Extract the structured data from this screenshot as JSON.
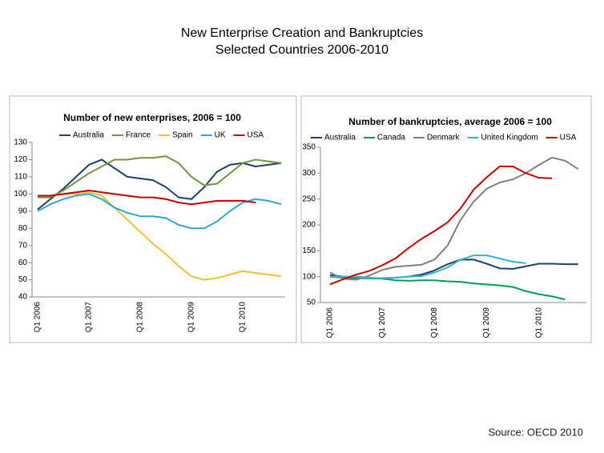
{
  "title": [
    "New Enterprise Creation and Bankruptcies",
    "Selected Countries 2006-2010"
  ],
  "source": "Source: OECD 2010",
  "chart_data": [
    {
      "type": "line",
      "title": "Number of new enterprises, 2006 = 100",
      "categories": [
        "Q1 2006",
        null,
        null,
        null,
        "Q1 2007",
        null,
        null,
        null,
        "Q1 2008",
        null,
        null,
        null,
        "Q1 2009",
        null,
        null,
        null,
        "Q1 2010",
        null,
        null,
        null
      ],
      "ylim": [
        40,
        130
      ],
      "yticks": [
        40,
        50,
        60,
        70,
        80,
        90,
        100,
        110,
        120,
        130
      ],
      "grid": false,
      "series": [
        {
          "name": "Australia",
          "color": "#1f3f6e",
          "values": [
            91,
            97,
            103,
            110,
            117,
            120,
            115,
            110,
            109,
            108,
            104,
            98,
            97,
            104,
            113,
            117,
            118,
            116,
            117,
            118
          ]
        },
        {
          "name": "France",
          "color": "#77933c",
          "values": [
            98,
            98,
            102,
            107,
            112,
            116,
            120,
            120,
            121,
            121,
            122,
            118,
            110,
            105,
            106,
            112,
            118,
            120,
            119,
            118
          ]
        },
        {
          "name": "Spain",
          "color": "#f2c12e",
          "values": [
            99,
            99,
            100,
            100,
            101,
            99,
            92,
            85,
            78,
            71,
            65,
            58,
            52,
            50,
            51,
            53,
            55,
            54,
            53,
            52
          ]
        },
        {
          "name": "UK",
          "color": "#31a6d6",
          "values": [
            90,
            94,
            97,
            99,
            100,
            97,
            92,
            89,
            87,
            87,
            86,
            82,
            80,
            80,
            84,
            90,
            95,
            97,
            96,
            94
          ]
        },
        {
          "name": "USA",
          "color": "#c00000",
          "values": [
            99,
            99,
            100,
            101,
            102,
            101,
            100,
            99,
            98,
            98,
            97,
            95,
            94,
            95,
            96,
            96,
            96,
            95,
            null,
            null
          ]
        }
      ]
    },
    {
      "type": "line",
      "title": "Number of bankruptcies, average 2006 = 100",
      "categories": [
        "Q1 2006",
        null,
        null,
        null,
        "Q1 2007",
        null,
        null,
        null,
        "Q1 2008",
        null,
        null,
        null,
        "Q1 2009",
        null,
        null,
        null,
        "Q1 2010",
        null,
        null,
        null
      ],
      "ylim": [
        50,
        350
      ],
      "yticks": [
        50,
        100,
        150,
        200,
        250,
        300,
        350
      ],
      "grid": false,
      "series": [
        {
          "name": "Australia",
          "color": "#1f3f6e",
          "values": [
            103,
            100,
            97,
            97,
            97,
            98,
            100,
            104,
            112,
            124,
            133,
            133,
            125,
            116,
            115,
            120,
            125,
            125,
            124,
            124
          ]
        },
        {
          "name": "Canada",
          "color": "#00a050",
          "values": [
            100,
            98,
            97,
            97,
            96,
            93,
            92,
            93,
            93,
            91,
            90,
            87,
            85,
            83,
            80,
            72,
            66,
            62,
            56,
            null
          ]
        },
        {
          "name": "Denmark",
          "color": "#808080",
          "values": [
            108,
            96,
            94,
            102,
            113,
            119,
            121,
            123,
            133,
            160,
            210,
            245,
            270,
            282,
            288,
            300,
            316,
            330,
            324,
            308
          ]
        },
        {
          "name": "United Kingdom",
          "color": "#31b5d6",
          "values": [
            100,
            100,
            100,
            98,
            97,
            98,
            100,
            101,
            108,
            118,
            133,
            141,
            141,
            135,
            129,
            126,
            null,
            null,
            null,
            null
          ]
        },
        {
          "name": "USA",
          "color": "#d00000",
          "values": [
            85,
            95,
            104,
            111,
            122,
            135,
            155,
            173,
            188,
            205,
            232,
            268,
            292,
            313,
            313,
            300,
            291,
            290,
            null,
            null
          ]
        }
      ]
    }
  ]
}
